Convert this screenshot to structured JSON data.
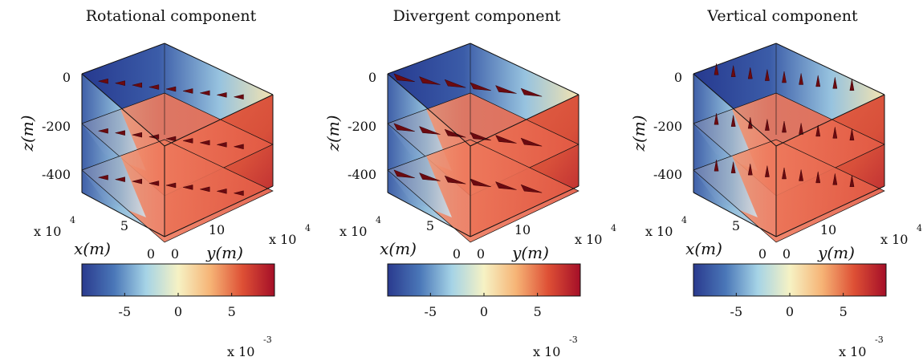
{
  "figure": {
    "colors": {
      "colormap": [
        "#2a3a8e",
        "#4a77b8",
        "#a5d3e6",
        "#f6f2c4",
        "#f6b476",
        "#de5035",
        "#a50f28"
      ],
      "arrow": "#6b0a10",
      "frame": "#111111"
    }
  },
  "chart_data": [
    {
      "type": "3d-slice",
      "title": "Rotational component",
      "arrow_direction": "horizontal",
      "xlabel": "x(m)",
      "ylabel": "y(m)",
      "zlabel": "z(m)",
      "x_ticks": [
        "0",
        "5"
      ],
      "x_multiplier": "x 10",
      "x_exponent": "4",
      "y_ticks": [
        "0",
        "10"
      ],
      "y_multiplier": "x 10",
      "y_exponent": "4",
      "z_ticks": [
        "0",
        "-200",
        "-400"
      ],
      "slice_depths": [
        -50,
        -250,
        -450
      ],
      "colorbar": {
        "ticks": [
          "-5",
          "0",
          "5"
        ],
        "tick_values": [
          -5,
          0,
          5
        ],
        "range": [
          -9,
          9
        ],
        "multiplier": "x 10",
        "exponent": "-3"
      }
    },
    {
      "type": "3d-slice",
      "title": "Divergent component",
      "arrow_direction": "diagonal",
      "xlabel": "x(m)",
      "ylabel": "y(m)",
      "zlabel": "z(m)",
      "x_ticks": [
        "0",
        "5"
      ],
      "x_multiplier": "x 10",
      "x_exponent": "4",
      "y_ticks": [
        "0",
        "10"
      ],
      "y_multiplier": "x 10",
      "y_exponent": "4",
      "z_ticks": [
        "0",
        "-200",
        "-400"
      ],
      "slice_depths": [
        -50,
        -250,
        -450
      ],
      "colorbar": {
        "ticks": [
          "-5",
          "0",
          "5"
        ],
        "tick_values": [
          -5,
          0,
          5
        ],
        "range": [
          -9,
          9
        ],
        "multiplier": "x 10",
        "exponent": "-3"
      }
    },
    {
      "type": "3d-slice",
      "title": "Vertical component",
      "arrow_direction": "vertical",
      "xlabel": "x(m)",
      "ylabel": "y(m)",
      "zlabel": "z(m)",
      "x_ticks": [
        "0",
        "5"
      ],
      "x_multiplier": "x 10",
      "x_exponent": "4",
      "y_ticks": [
        "0",
        "10"
      ],
      "y_multiplier": "x 10",
      "y_exponent": "4",
      "z_ticks": [
        "0",
        "-200",
        "-400"
      ],
      "slice_depths": [
        -50,
        -250,
        -450
      ],
      "colorbar": {
        "ticks": [
          "-5",
          "0",
          "5"
        ],
        "tick_values": [
          -5,
          0,
          5
        ],
        "range": [
          -9,
          9
        ],
        "multiplier": "x 10",
        "exponent": "-3"
      }
    }
  ]
}
